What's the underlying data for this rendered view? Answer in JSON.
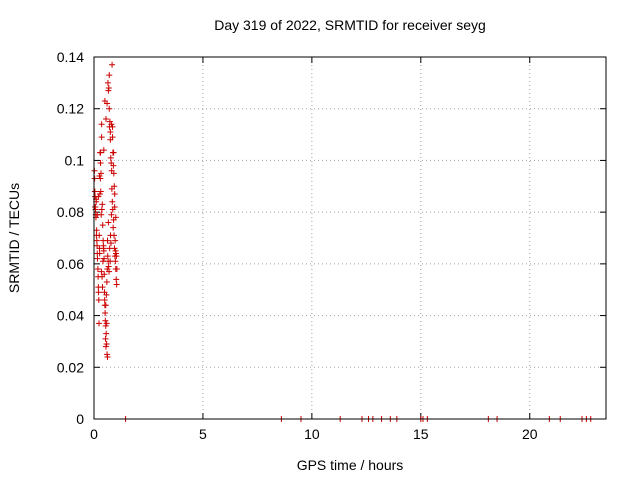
{
  "chart_data": {
    "type": "scatter",
    "title": "Day 319 of 2022, SRMTID for receiver seyg",
    "xlabel": "GPS time / hours",
    "ylabel": "SRMTID / TECUs",
    "xlim": [
      0,
      23.5
    ],
    "ylim": [
      0,
      0.14
    ],
    "xticks": [
      0,
      5,
      10,
      15,
      20
    ],
    "yticks": [
      0,
      0.02,
      0.04,
      0.06,
      0.08,
      0.1,
      0.12,
      0.14
    ],
    "ytick_labels": [
      "0",
      "0.02",
      "0.04",
      "0.06",
      "0.08",
      "0.1",
      "0.12",
      "0.14"
    ],
    "grid": true,
    "marker": "+",
    "marker_color": "#cc0000",
    "series": [
      {
        "x": [
          0.02,
          0.04,
          0.06,
          0.08,
          0.1,
          0.05,
          0.07,
          0.03,
          0.09,
          0.12,
          0.14,
          0.16,
          0.18,
          0.2,
          0.22,
          0.13,
          0.15,
          0.11,
          0.19,
          0.21,
          0.23,
          0.25,
          0.28,
          0.3,
          0.32,
          0.35,
          0.24,
          0.26,
          0.27,
          0.29,
          0.31,
          0.33,
          0.36,
          0.38,
          0.4,
          0.42,
          0.44,
          0.46,
          0.34,
          0.37,
          0.39,
          0.41,
          0.43,
          0.45,
          0.47,
          0.48,
          0.5,
          0.52,
          0.54,
          0.56,
          0.58,
          0.6,
          0.62,
          0.49,
          0.51,
          0.53,
          0.55,
          0.57,
          0.59,
          0.61,
          0.63,
          0.65,
          0.67,
          0.69,
          0.72,
          0.74,
          0.76,
          0.78,
          0.8,
          0.82,
          0.66,
          0.68,
          0.7,
          0.71,
          0.73,
          0.75,
          0.77,
          0.79,
          0.81,
          0.84,
          0.86,
          0.88,
          0.9,
          0.92,
          0.94,
          0.96,
          0.98,
          1.0,
          1.02,
          1.04,
          0.85,
          0.87,
          0.89,
          0.91,
          0.93,
          0.95,
          0.97,
          0.99,
          1.01,
          1.03,
          1.05,
          0.64,
          0.83,
          0.5,
          0.55,
          0.6,
          0.45,
          0.35,
          0.3,
          0.25,
          0.2,
          0.15,
          0.1,
          0.05,
          0.7,
          0.75,
          0.8,
          0.85,
          0.9,
          0.95,
          1.0,
          0.62,
          0.66,
          0.58,
          0.54,
          1.45,
          8.6,
          9.5,
          11.3,
          12.3,
          12.6,
          12.8,
          13.2,
          13.6,
          13.9,
          15.0,
          15.1,
          15.3,
          18.1,
          18.5,
          20.9,
          21.4,
          22.4,
          22.6,
          22.8
        ],
        "y": [
          0.096,
          0.088,
          0.082,
          0.079,
          0.084,
          0.086,
          0.081,
          0.093,
          0.078,
          0.073,
          0.067,
          0.062,
          0.058,
          0.051,
          0.046,
          0.069,
          0.064,
          0.071,
          0.055,
          0.049,
          0.037,
          0.066,
          0.103,
          0.099,
          0.095,
          0.109,
          0.071,
          0.064,
          0.087,
          0.093,
          0.088,
          0.079,
          0.081,
          0.083,
          0.075,
          0.069,
          0.066,
          0.062,
          0.057,
          0.055,
          0.051,
          0.061,
          0.067,
          0.065,
          0.056,
          0.049,
          0.044,
          0.038,
          0.036,
          0.033,
          0.029,
          0.025,
          0.024,
          0.046,
          0.041,
          0.031,
          0.028,
          0.048,
          0.053,
          0.058,
          0.063,
          0.061,
          0.059,
          0.057,
          0.066,
          0.061,
          0.071,
          0.068,
          0.079,
          0.089,
          0.127,
          0.128,
          0.12,
          0.113,
          0.115,
          0.108,
          0.101,
          0.099,
          0.096,
          0.084,
          0.081,
          0.074,
          0.077,
          0.071,
          0.066,
          0.063,
          0.061,
          0.058,
          0.054,
          0.052,
          0.113,
          0.103,
          0.098,
          0.095,
          0.09,
          0.087,
          0.069,
          0.065,
          0.064,
          0.063,
          0.058,
          0.13,
          0.137,
          0.123,
          0.116,
          0.122,
          0.104,
          0.114,
          0.103,
          0.094,
          0.086,
          0.079,
          0.085,
          0.082,
          0.133,
          0.111,
          0.114,
          0.109,
          0.103,
          0.082,
          0.078,
          0.069,
          0.076,
          0.037,
          0.044,
          0.0,
          0.0,
          0.0,
          0.0,
          0.0,
          0.0,
          0.0,
          0.0,
          0.0,
          0.0,
          0.0,
          0.0,
          0.0,
          0.0,
          0.0,
          0.0,
          0.0,
          0.0,
          0.0,
          0.0
        ]
      }
    ]
  }
}
